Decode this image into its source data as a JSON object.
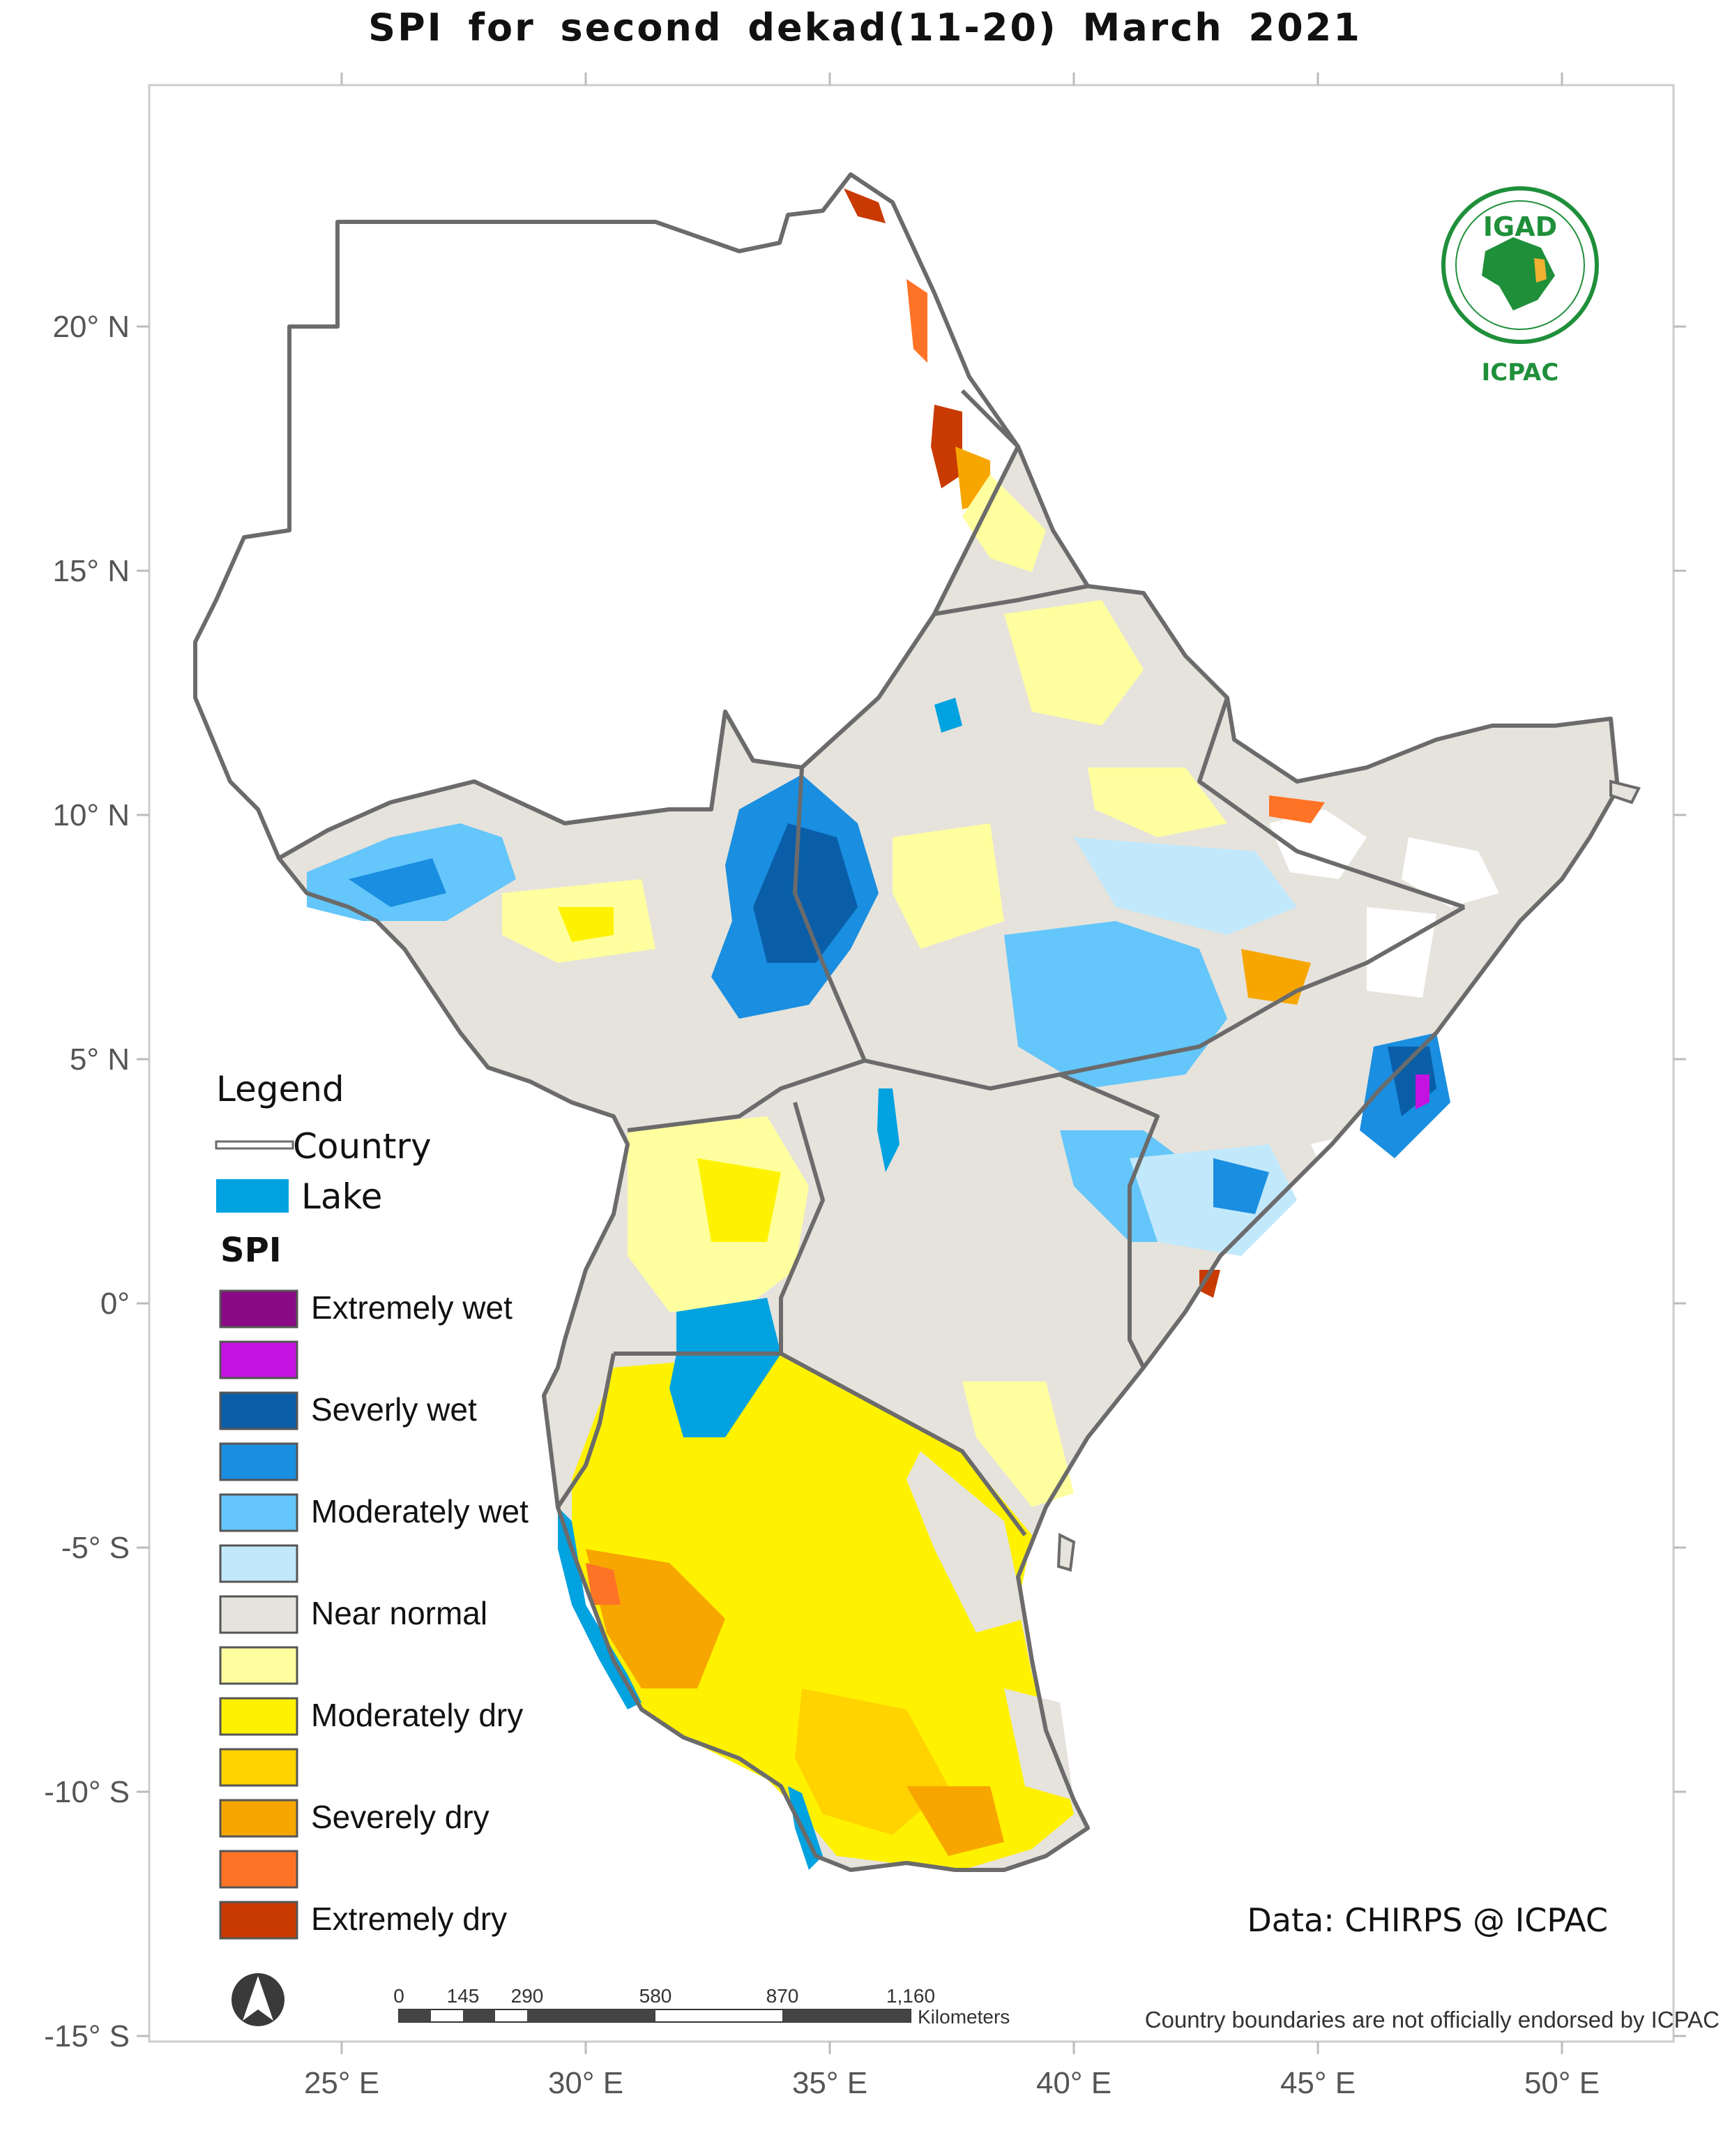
{
  "title": "SPI for second dekad(11-20) March 2021",
  "colors": {
    "frame": "#cccccc",
    "country_border": "#6b6b6b",
    "lake": "#00a2e0",
    "near_normal": "#e6e3dc",
    "no_data": "#ffffff"
  },
  "axes": {
    "y_ticks": [
      "20° N",
      "15° N",
      "10° N",
      "5° N",
      "0°",
      "-5° S",
      "-10° S",
      "-15° S"
    ],
    "x_ticks": [
      "25° E",
      "30° E",
      "35° E",
      "40° E",
      "45° E",
      "50° E"
    ]
  },
  "legend": {
    "title": "Legend",
    "country_label": "Country",
    "lake_label": "Lake",
    "spi_heading": "SPI",
    "classes": [
      {
        "label": "Extremely wet",
        "color": "#8a0a86"
      },
      {
        "label": "",
        "color": "#c412e0"
      },
      {
        "label": "Severly wet",
        "color": "#0a5ea8"
      },
      {
        "label": "",
        "color": "#1a8ee0"
      },
      {
        "label": "Moderately wet",
        "color": "#64c6fa"
      },
      {
        "label": "",
        "color": "#c2e8fb"
      },
      {
        "label": "Near normal",
        "color": "#e6e3dc"
      },
      {
        "label": "",
        "color": "#ffff9f"
      },
      {
        "label": "Moderately dry",
        "color": "#fff200"
      },
      {
        "label": "",
        "color": "#ffd200"
      },
      {
        "label": "Severely dry",
        "color": "#f7a600"
      },
      {
        "label": "",
        "color": "#ff7326"
      },
      {
        "label": "Extremely dry",
        "color": "#c93a00"
      }
    ]
  },
  "logo": {
    "top_text": "IGAD",
    "bottom_text": "ICPAC",
    "icon": "igad-emblem-icon"
  },
  "credit": "Data: CHIRPS @ ICPAC",
  "scale_bar": {
    "labels": [
      "0",
      "145",
      "290",
      "580",
      "870",
      "1,160"
    ],
    "unit": "Kilometers"
  },
  "north_arrow": {
    "icon": "north-arrow-icon"
  },
  "disclaimer": "Country boundaries are not officially endorsed by ICPAC"
}
